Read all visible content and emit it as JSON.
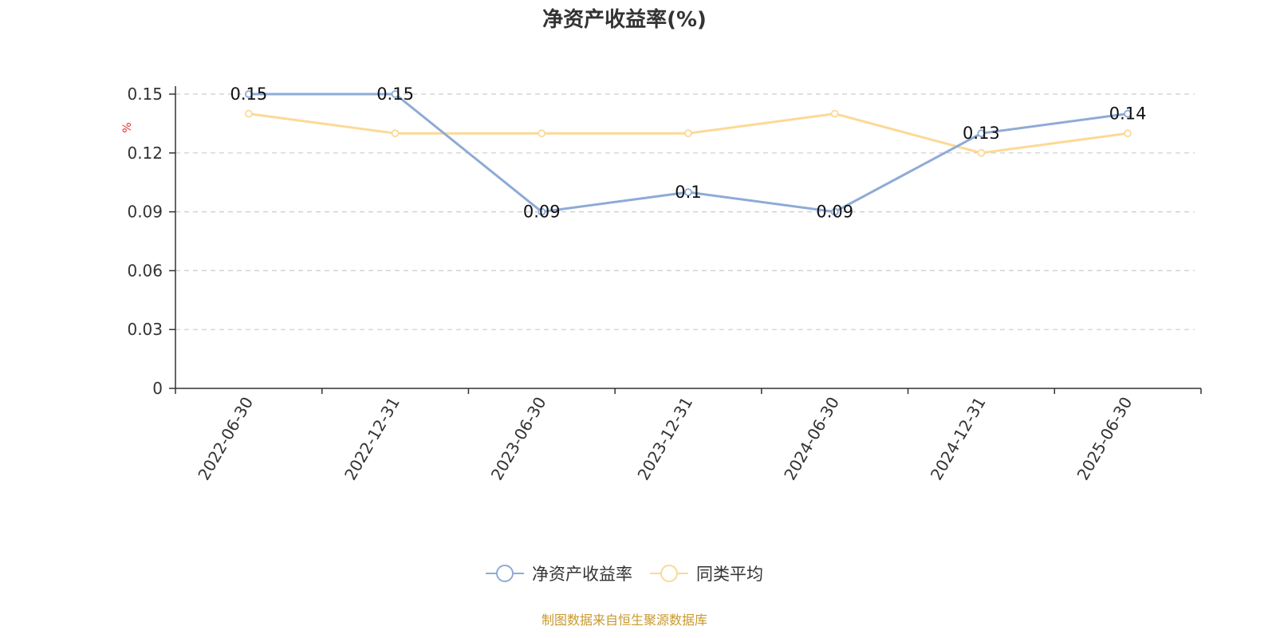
{
  "chart_data": {
    "type": "line",
    "title": "净资产收益率(%)",
    "ylabel": "%",
    "categories": [
      "2022-06-30",
      "2022-12-31",
      "2023-06-30",
      "2023-12-31",
      "2024-06-30",
      "2024-12-31",
      "2025-06-30"
    ],
    "ylim": [
      0,
      0.15
    ],
    "yticks": [
      "0",
      "0.03",
      "0.06",
      "0.09",
      "0.12",
      "0.15"
    ],
    "grid": true,
    "legend_position": "bottom",
    "series": [
      {
        "name": "净资产收益率",
        "color": "#8eabd6",
        "values": [
          0.15,
          0.15,
          0.09,
          0.1,
          0.09,
          0.13,
          0.14
        ],
        "data_labels": [
          "0.15",
          "0.15",
          "0.09",
          "0.1",
          "0.09",
          "0.13",
          "0.14"
        ]
      },
      {
        "name": "同类平均",
        "color": "#fcd995",
        "values": [
          0.14,
          0.13,
          0.13,
          0.13,
          0.14,
          0.12,
          0.13
        ]
      }
    ],
    "source": "制图数据来自恒生聚源数据库"
  }
}
